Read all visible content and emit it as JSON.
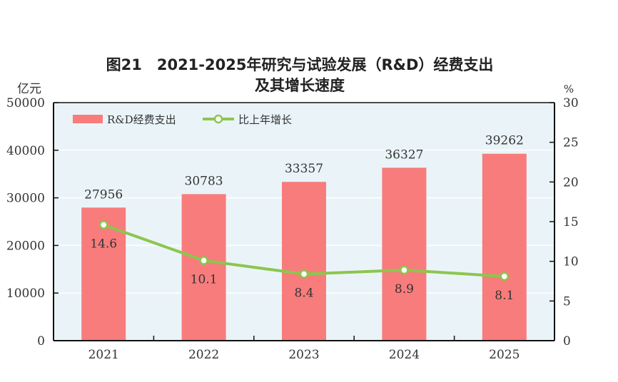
{
  "chart_data": {
    "type": "bar+line",
    "title_line1": "图21　2021-2025年研究与试验发展（R&D）经费支出",
    "title_line2": "及其增长速度",
    "left_unit": "亿元",
    "right_unit": "%",
    "categories": [
      "2021",
      "2022",
      "2023",
      "2024",
      "2025"
    ],
    "left_ylim": [
      0,
      50000
    ],
    "left_ticks": [
      0,
      10000,
      20000,
      30000,
      40000,
      50000
    ],
    "right_ylim": [
      0,
      30
    ],
    "right_ticks": [
      0,
      5,
      10,
      15,
      20,
      25,
      30
    ],
    "grid": true,
    "legend_placement": "top-left",
    "series": [
      {
        "name": "R&D经费支出",
        "type": "bar",
        "axis": "left",
        "values": [
          27956,
          30783,
          33357,
          36327,
          39262
        ],
        "labels": [
          "27956",
          "30783",
          "33357",
          "36327",
          "39262"
        ],
        "color": "#f87c7c"
      },
      {
        "name": "比上年增长",
        "type": "line",
        "axis": "right",
        "values": [
          14.6,
          10.1,
          8.4,
          8.9,
          8.1
        ],
        "labels": [
          "14.6",
          "10.1",
          "8.4",
          "8.9",
          "8.1"
        ],
        "color": "#8cc64e"
      }
    ],
    "plot_background": "#eaf4f8"
  }
}
